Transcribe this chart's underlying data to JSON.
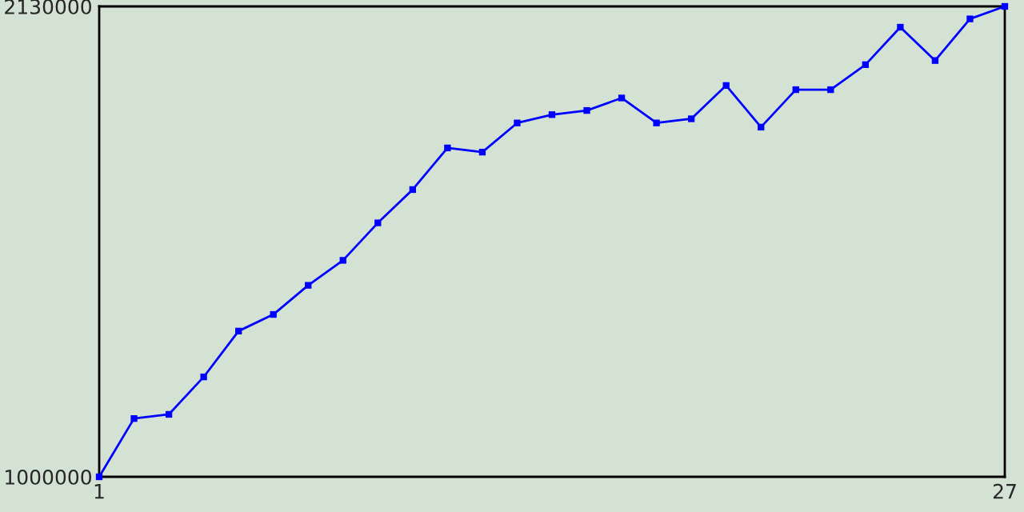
{
  "chart_data": {
    "type": "line",
    "x": [
      1,
      2,
      3,
      4,
      5,
      6,
      7,
      8,
      9,
      10,
      11,
      12,
      13,
      14,
      15,
      16,
      17,
      18,
      19,
      20,
      21,
      22,
      23,
      24,
      25,
      26,
      27
    ],
    "series": [
      {
        "color": "#0000ff",
        "values": [
          1000000,
          1140000,
          1150000,
          1240000,
          1350000,
          1390000,
          1460000,
          1520000,
          1610000,
          1690000,
          1790000,
          1780000,
          1850000,
          1870000,
          1880000,
          1910000,
          1850000,
          1860000,
          1940000,
          1840000,
          1930000,
          1930000,
          1990000,
          2080000,
          2000000,
          2100000,
          2130000
        ]
      }
    ],
    "xlim": [
      1,
      27
    ],
    "xticks": [
      1,
      27
    ],
    "ylim": [
      1000000,
      2130000
    ],
    "yticks": [
      1000000,
      2130000
    ],
    "marker": "square"
  }
}
